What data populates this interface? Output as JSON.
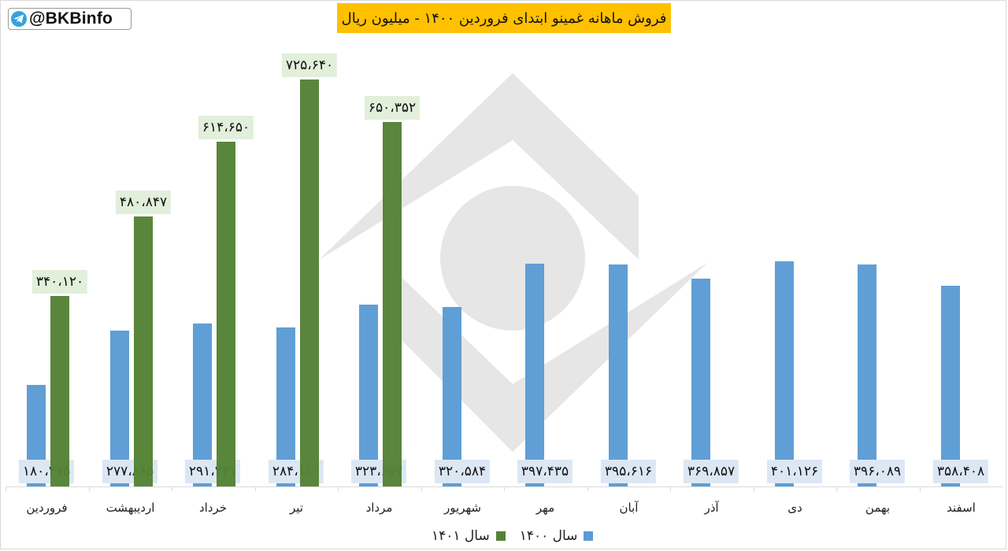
{
  "header": {
    "handle": "@BKBinfo",
    "handle_icon": "telegram-icon",
    "title": "فروش ماهانه غمینو ابتدای فروردین ۱۴۰۰ - میلیون ریال"
  },
  "colors": {
    "series_1400": "#5b9bd5",
    "series_1401": "#548235",
    "title_bg": "#ffc000",
    "label_bg_1400": "#dce7f4",
    "label_bg_1401": "#e2efda",
    "watermark": "#e6e6e6"
  },
  "legend": {
    "items": [
      {
        "label": "سال ۱۴۰۰",
        "color": "#5b9bd5"
      },
      {
        "label": "سال ۱۴۰۱",
        "color": "#548235"
      }
    ]
  },
  "chart_data": {
    "type": "bar",
    "title": "فروش ماهانه غمینو ابتدای فروردین ۱۴۰۰ - میلیون ریال",
    "xlabel": "",
    "ylabel": "",
    "unit": "million rial",
    "categories": [
      "فروردین",
      "اردیبهشت",
      "خرداد",
      "تیر",
      "مرداد",
      "شهریور",
      "مهر",
      "آبان",
      "آذر",
      "دی",
      "بهمن",
      "اسفند"
    ],
    "series": [
      {
        "name": "سال ۱۴۰۰",
        "color": "#5b9bd5",
        "values": [
          180475,
          277865,
          291231,
          284110,
          323657,
          320584,
          397435,
          395616,
          369857,
          401126,
          396089,
          358408
        ],
        "labels": [
          "۱۸۰،۴۷۵",
          "۲۷۷،۸۶۵",
          "۲۹۱،۲۳۱",
          "۲۸۴،۱۱۰",
          "۳۲۳،۶۵۷",
          "۳۲۰،۵۸۴",
          "۳۹۷،۴۳۵",
          "۳۹۵،۶۱۶",
          "۳۶۹،۸۵۷",
          "۴۰۱،۱۲۶",
          "۳۹۶،۰۸۹",
          "۳۵۸،۴۰۸"
        ]
      },
      {
        "name": "سال ۱۴۰۱",
        "color": "#548235",
        "values": [
          340120,
          480847,
          614650,
          725640,
          650352,
          null,
          null,
          null,
          null,
          null,
          null,
          null
        ],
        "labels": [
          "۳۴۰،۱۲۰",
          "۴۸۰،۸۴۷",
          "۶۱۴،۶۵۰",
          "۷۲۵،۶۴۰",
          "۶۵۰،۳۵۲",
          "",
          "",
          "",
          "",
          "",
          "",
          ""
        ]
      }
    ],
    "ylim": [
      0,
      750000
    ],
    "grid": false,
    "legend_position": "bottom",
    "data_labels": true,
    "y_axis_visible": false
  }
}
